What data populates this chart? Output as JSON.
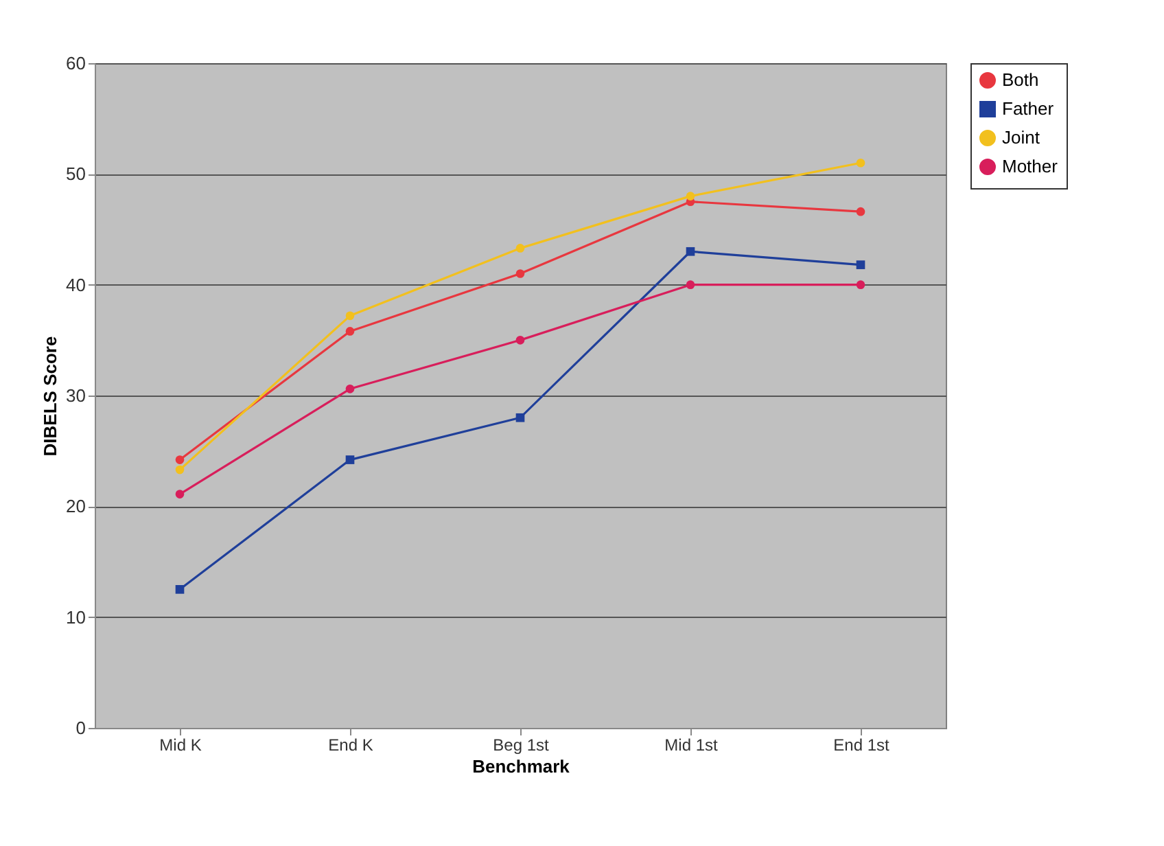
{
  "chart_data": {
    "type": "line",
    "xlabel": "Benchmark",
    "ylabel": "DIBELS Score",
    "categories": [
      "Mid K",
      "End K",
      "Beg 1st",
      "Mid 1st",
      "End 1st"
    ],
    "ylim": [
      0,
      60
    ],
    "yticks": [
      0,
      10,
      20,
      30,
      40,
      50,
      60
    ],
    "grid": "y",
    "legend": "right",
    "series": [
      {
        "name": "Both",
        "color": "#e8373f",
        "marker": "circle",
        "values": [
          24.2,
          35.8,
          41,
          47.5,
          46.6
        ]
      },
      {
        "name": "Father",
        "color": "#1f3f9a",
        "marker": "square",
        "values": [
          12.5,
          24.2,
          28,
          43,
          41.8
        ]
      },
      {
        "name": "Joint",
        "color": "#f2c01e",
        "marker": "circle",
        "values": [
          23.3,
          37.2,
          43.3,
          48,
          51
        ]
      },
      {
        "name": "Mother",
        "color": "#d81e5b",
        "marker": "circle",
        "values": [
          21.1,
          30.6,
          35,
          40,
          40
        ]
      }
    ]
  }
}
